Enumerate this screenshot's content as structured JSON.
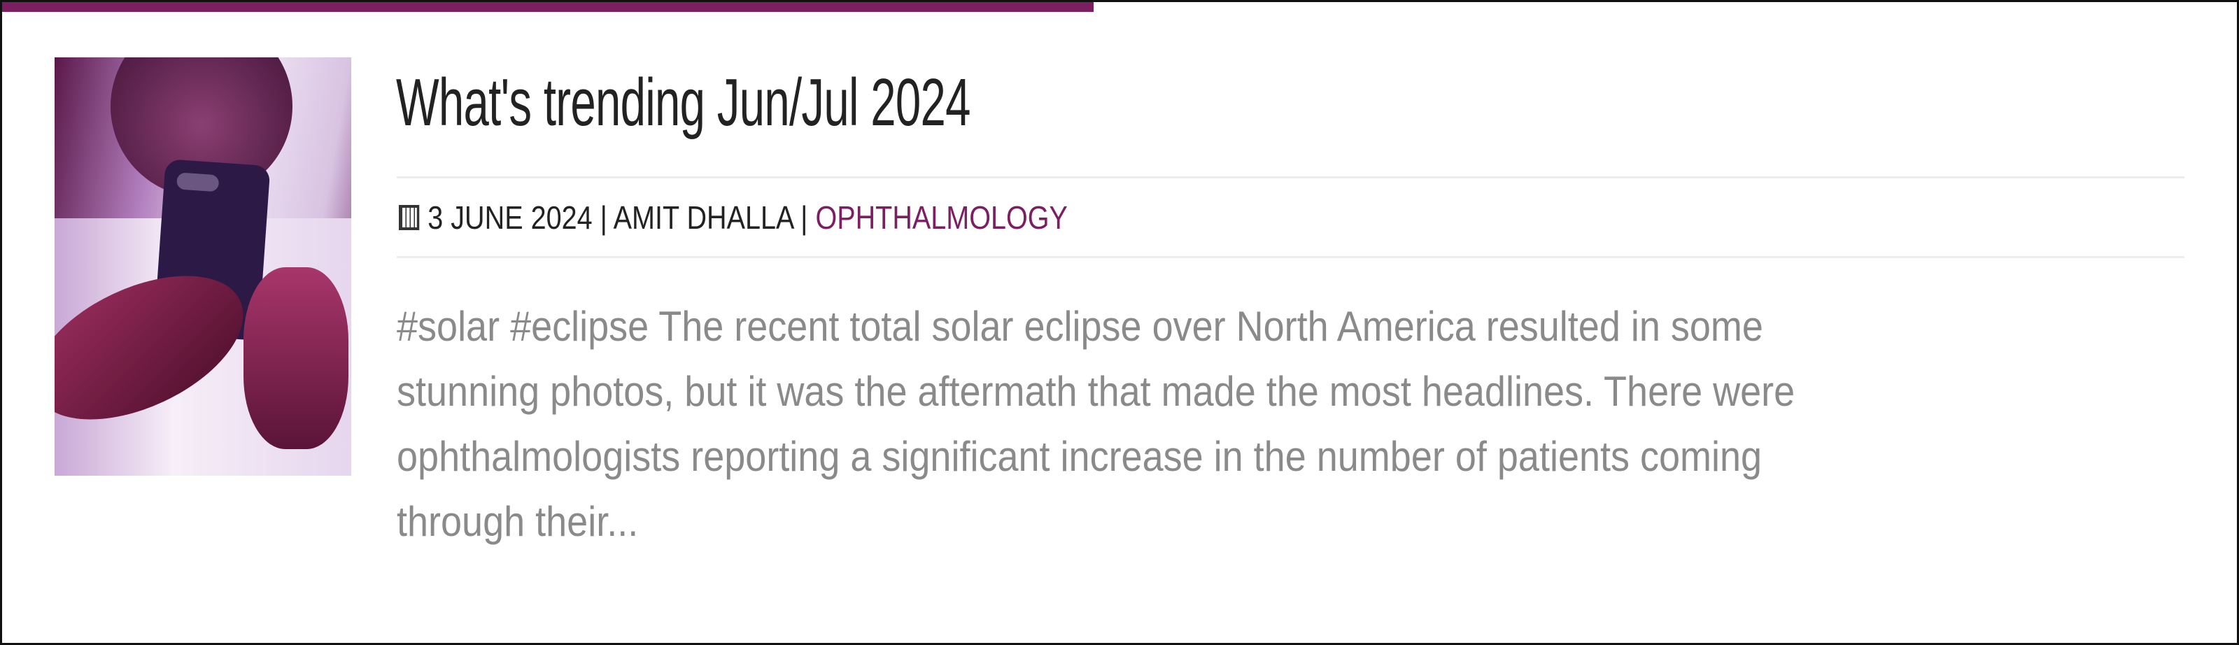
{
  "post": {
    "title": "What's trending Jun/Jul 2024",
    "date": "3 JUNE 2024",
    "separator": "|",
    "author": "AMIT DHALLA",
    "category": "OPHTHALMOLOGY",
    "excerpt_lines": [
      "#solar #eclipse The recent total solar eclipse over North America resulted in some",
      "stunning photos, but it was the aftermath that made the most headlines. There were",
      "ophthalmologists reporting a significant increase in the number of patients coming",
      "through their..."
    ],
    "thumbnail_icon": "person-holding-phone-photo",
    "date_icon": "calendar-icon"
  },
  "colors": {
    "accent": "#7b1f62",
    "title": "#222222",
    "excerpt": "#8a8a8a"
  }
}
